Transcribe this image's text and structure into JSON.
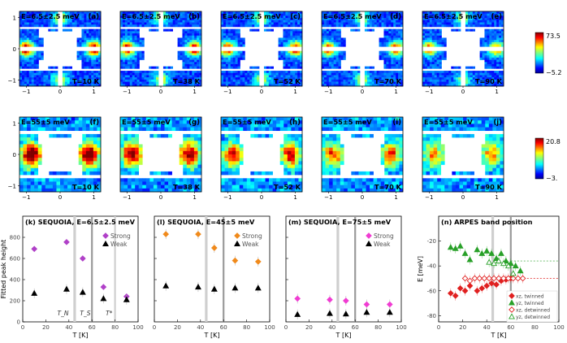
{
  "colorbars": [
    {
      "max": "73.5",
      "min": "−5.2"
    },
    {
      "max": "20.8",
      "min": "−3."
    }
  ],
  "row1": [
    {
      "energy": "E=6.5±2.5 meV",
      "letter": "(a)",
      "temp": "T=10 K"
    },
    {
      "energy": "E=6.5±2.5 meV",
      "letter": "(b)",
      "temp": "T=38 K"
    },
    {
      "energy": "E=6.5±2.5 meV",
      "letter": "(c)",
      "temp": "T=52 K"
    },
    {
      "energy": "E=6.5±2.5 meV",
      "letter": "(d)",
      "temp": "T=70 K"
    },
    {
      "energy": "E=6.5±2.5 meV",
      "letter": "(e)",
      "temp": "T=90 K"
    }
  ],
  "row2": [
    {
      "energy": "E=55±5 meV",
      "letter": "(f)",
      "temp": "T=10 K"
    },
    {
      "energy": "E=55±5 meV",
      "letter": "(g)",
      "temp": "T=38 K"
    },
    {
      "energy": "E=55±5 meV",
      "letter": "(h)",
      "temp": "T=52 K"
    },
    {
      "energy": "E=55±5 meV",
      "letter": "(i)",
      "temp": "T=70 K"
    },
    {
      "energy": "E=55±5 meV",
      "letter": "(j)",
      "temp": "T=90 K"
    }
  ],
  "map_ticks": {
    "x": [
      "−1",
      "0",
      "1"
    ],
    "y": [
      "1",
      "0",
      "−1"
    ]
  },
  "chart_data": [
    {
      "type": "scatter",
      "title": "(k) SEQUOIA, E=6.5±2.5 meV",
      "ylabel": "Fitted peak height",
      "xlabel": "T [K]",
      "xlim": [
        0,
        100
      ],
      "ylim": [
        0,
        1000
      ],
      "xticks": [
        "0",
        "20",
        "40",
        "60",
        "80",
        "100"
      ],
      "yticks": [
        "0",
        "200",
        "400",
        "600",
        "800"
      ],
      "legend_position": "top-right",
      "annotations": [
        "T_N",
        "T_S",
        "T*"
      ],
      "vlines": [
        45,
        60,
        80
      ],
      "series": [
        {
          "name": "Strong",
          "color": "#b040c8",
          "marker": "diamond",
          "x": [
            10,
            38,
            52,
            70,
            90
          ],
          "y": [
            690,
            755,
            600,
            330,
            240
          ]
        },
        {
          "name": "Weak",
          "color": "#000000",
          "marker": "triangle",
          "x": [
            10,
            38,
            52,
            70,
            90
          ],
          "y": [
            270,
            310,
            280,
            220,
            210
          ]
        }
      ]
    },
    {
      "type": "scatter",
      "title": "(l) SEQUOIA, E=45±5 meV",
      "xlabel": "T [K]",
      "xlim": [
        0,
        100
      ],
      "ylim": [
        0,
        1000
      ],
      "xticks": [
        "0",
        "20",
        "40",
        "60",
        "80",
        "100"
      ],
      "legend_position": "top-right",
      "vlines": [
        45,
        60
      ],
      "series": [
        {
          "name": "Strong",
          "color": "#f08a1c",
          "marker": "diamond",
          "x": [
            10,
            38,
            52,
            70,
            90
          ],
          "y": [
            830,
            830,
            700,
            580,
            570
          ]
        },
        {
          "name": "Weak",
          "color": "#000000",
          "marker": "triangle",
          "x": [
            10,
            38,
            52,
            70,
            90
          ],
          "y": [
            340,
            330,
            310,
            320,
            320
          ]
        }
      ]
    },
    {
      "type": "scatter",
      "title": "(m) SEQUOIA, E=75±5 meV",
      "xlabel": "T [K]",
      "xlim": [
        0,
        100
      ],
      "ylim": [
        0,
        1000
      ],
      "xticks": [
        "0",
        "20",
        "40",
        "60",
        "80",
        "100"
      ],
      "legend_position": "top-right",
      "vlines": [
        45,
        60
      ],
      "series": [
        {
          "name": "Strong",
          "color": "#f03cd2",
          "marker": "diamond",
          "x": [
            10,
            38,
            52,
            70,
            90
          ],
          "y": [
            220,
            210,
            200,
            165,
            165
          ]
        },
        {
          "name": "Weak",
          "color": "#000000",
          "marker": "triangle",
          "x": [
            10,
            38,
            52,
            70,
            90
          ],
          "y": [
            70,
            80,
            75,
            90,
            90
          ]
        }
      ]
    },
    {
      "type": "scatter",
      "title": "(n) ARPES band position",
      "ylabel": "E [meV]",
      "xlabel": "T [K]",
      "xlim": [
        0,
        100
      ],
      "ylim": [
        -85,
        0
      ],
      "xticks": [
        "0",
        "20",
        "40",
        "60",
        "80",
        "100"
      ],
      "yticks": [
        "-20",
        "-40",
        "-60",
        "-80"
      ],
      "legend_position": "bottom-right",
      "vlines": [
        45,
        60
      ],
      "series": [
        {
          "name": "xz, twinned",
          "color": "#e02020",
          "marker": "diamond",
          "x": [
            10,
            14,
            18,
            22,
            26,
            32,
            36,
            40,
            44,
            48,
            52,
            56,
            60
          ],
          "y": [
            -62,
            -64,
            -58,
            -60,
            -56,
            -60,
            -58,
            -56,
            -54,
            -55,
            -52,
            -51,
            -50
          ]
        },
        {
          "name": "yz, twinned",
          "color": "#28a028",
          "marker": "triangle",
          "x": [
            10,
            14,
            18,
            22,
            26,
            32,
            36,
            40,
            44,
            48,
            52,
            56,
            60,
            64,
            68
          ],
          "y": [
            -25,
            -26,
            -24,
            -30,
            -35,
            -27,
            -30,
            -28,
            -30,
            -34,
            -30,
            -36,
            -38,
            -40,
            -44
          ]
        },
        {
          "name": "xz, detwinned",
          "color": "#e02020",
          "marker": "diamond-open",
          "x": [
            22,
            26,
            30,
            34,
            38,
            42,
            46,
            50,
            54,
            58,
            62,
            66,
            70
          ],
          "y": [
            -50,
            -52,
            -50,
            -50,
            -50,
            -50,
            -50,
            -50,
            -50,
            -50,
            -50,
            -50,
            -50
          ]
        },
        {
          "name": "yz, detwinned",
          "color": "#28a028",
          "marker": "triangle-open",
          "x": [
            42,
            46,
            50,
            54,
            58,
            62
          ],
          "y": [
            -37,
            -38,
            -36,
            -38,
            -40,
            -46
          ]
        }
      ]
    }
  ]
}
